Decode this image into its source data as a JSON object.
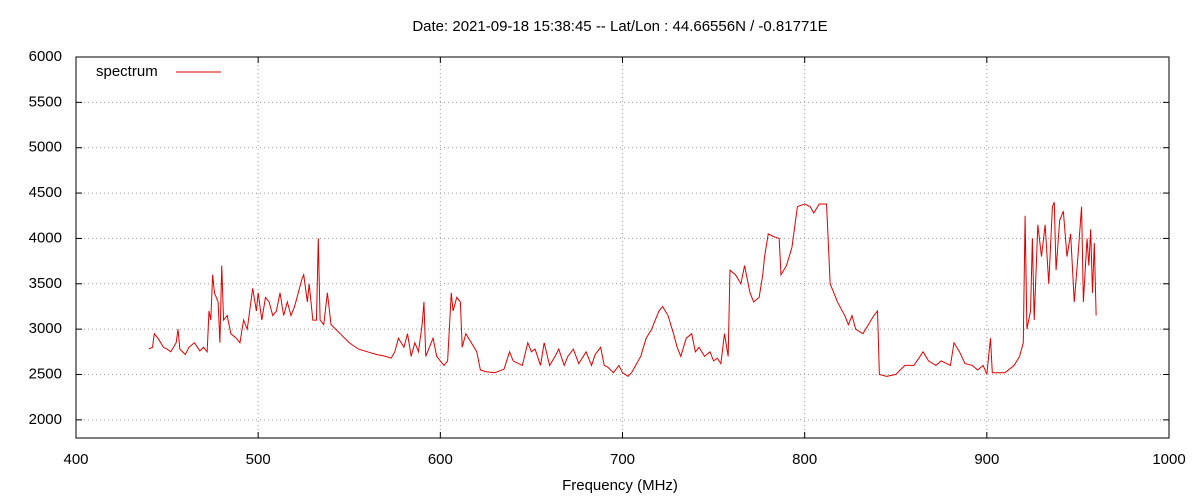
{
  "chart_data": {
    "type": "line",
    "title": "Date: 2021-09-18 15:38:45  --  Lat/Lon : 44.66556N / -0.81771E",
    "x_label": "Frequency (MHz)",
    "xlim": [
      400,
      1000
    ],
    "xticks": [
      400,
      500,
      600,
      700,
      800,
      900,
      1000
    ],
    "ylim": [
      1800,
      6000
    ],
    "yticks": [
      2000,
      2500,
      3000,
      3500,
      4000,
      4500,
      5000,
      5500,
      6000
    ],
    "grid": true,
    "legend": "top-left",
    "x": [
      440,
      442,
      443,
      445,
      448,
      450,
      452,
      455,
      456,
      457,
      460,
      462,
      465,
      468,
      470,
      472,
      473,
      474,
      475,
      476,
      478,
      479,
      480,
      481,
      483,
      485,
      488,
      490,
      492,
      494,
      496,
      497,
      499,
      500,
      502,
      504,
      506,
      508,
      510,
      512,
      514,
      516,
      518,
      520,
      522,
      524,
      525,
      527,
      528,
      530,
      532,
      533,
      534,
      536,
      538,
      540,
      545,
      550,
      555,
      560,
      565,
      570,
      573,
      575,
      577,
      580,
      582,
      584,
      586,
      588,
      590,
      591,
      592,
      594,
      596,
      598,
      600,
      602,
      604,
      606,
      607,
      609,
      611,
      612,
      614,
      617,
      620,
      622,
      625,
      630,
      635,
      638,
      640,
      645,
      648,
      650,
      652,
      655,
      657,
      660,
      663,
      665,
      668,
      670,
      673,
      676,
      680,
      683,
      685,
      688,
      690,
      692,
      695,
      698,
      700,
      703,
      705,
      710,
      713,
      716,
      718,
      720,
      722,
      725,
      728,
      730,
      732,
      735,
      738,
      740,
      742,
      745,
      748,
      750,
      752,
      754,
      756,
      758,
      759,
      762,
      765,
      767,
      770,
      772,
      775,
      777,
      778,
      780,
      783,
      786,
      787,
      790,
      793,
      795,
      796,
      800,
      803,
      805,
      808,
      812,
      814,
      818,
      822,
      824,
      826,
      828,
      832,
      835,
      838,
      840,
      841,
      845,
      850,
      855,
      860,
      865,
      868,
      872,
      875,
      880,
      882,
      885,
      888,
      892,
      895,
      898,
      900,
      902,
      903,
      905,
      910,
      915,
      918,
      920,
      921,
      922,
      924,
      925,
      926,
      928,
      930,
      932,
      934,
      936,
      937,
      938,
      940,
      942,
      944,
      946,
      948,
      950,
      952,
      953,
      955,
      956,
      957,
      958,
      959,
      960
    ],
    "series": [
      {
        "name": "spectrum",
        "color": "#e00000",
        "values": [
          2780,
          2800,
          2950,
          2900,
          2800,
          2780,
          2750,
          2850,
          3000,
          2780,
          2720,
          2800,
          2850,
          2760,
          2800,
          2750,
          3200,
          3100,
          3600,
          3400,
          3300,
          2850,
          3700,
          3100,
          3150,
          2950,
          2900,
          2850,
          3100,
          3000,
          3300,
          3450,
          3200,
          3400,
          3100,
          3350,
          3300,
          3150,
          3200,
          3400,
          3150,
          3300,
          3150,
          3250,
          3400,
          3550,
          3600,
          3300,
          3500,
          3100,
          3100,
          4000,
          3100,
          3050,
          3400,
          3050,
          2950,
          2850,
          2780,
          2750,
          2720,
          2700,
          2680,
          2750,
          2900,
          2800,
          2950,
          2700,
          2850,
          2750,
          3050,
          3300,
          2700,
          2800,
          2900,
          2700,
          2650,
          2600,
          2650,
          3400,
          3200,
          3350,
          3300,
          2800,
          2950,
          2850,
          2750,
          2550,
          2530,
          2520,
          2560,
          2750,
          2650,
          2600,
          2850,
          2750,
          2780,
          2600,
          2850,
          2600,
          2700,
          2780,
          2600,
          2700,
          2780,
          2620,
          2750,
          2600,
          2720,
          2800,
          2600,
          2580,
          2520,
          2600,
          2520,
          2480,
          2520,
          2700,
          2900,
          3000,
          3100,
          3200,
          3250,
          3150,
          2950,
          2800,
          2700,
          2900,
          2950,
          2750,
          2800,
          2700,
          2750,
          2650,
          2680,
          2620,
          2950,
          2700,
          3650,
          3600,
          3500,
          3700,
          3400,
          3300,
          3350,
          3600,
          3800,
          4050,
          4020,
          4000,
          3600,
          3700,
          3900,
          4200,
          4350,
          4380,
          4350,
          4280,
          4380,
          4380,
          3500,
          3300,
          3150,
          3050,
          3150,
          3000,
          2950,
          3050,
          3150,
          3200,
          2500,
          2480,
          2500,
          2600,
          2600,
          2750,
          2650,
          2600,
          2650,
          2600,
          2850,
          2750,
          2620,
          2600,
          2550,
          2600,
          2500,
          2900,
          2520,
          2520,
          2520,
          2600,
          2700,
          2850,
          4250,
          3000,
          3200,
          4000,
          3100,
          4150,
          3800,
          4150,
          3500,
          4350,
          4400,
          3650,
          4200,
          4300,
          3800,
          4050,
          3300,
          3800,
          4350,
          3300,
          4000,
          3700,
          4100,
          3400,
          3950,
          3150
        ]
      }
    ]
  }
}
